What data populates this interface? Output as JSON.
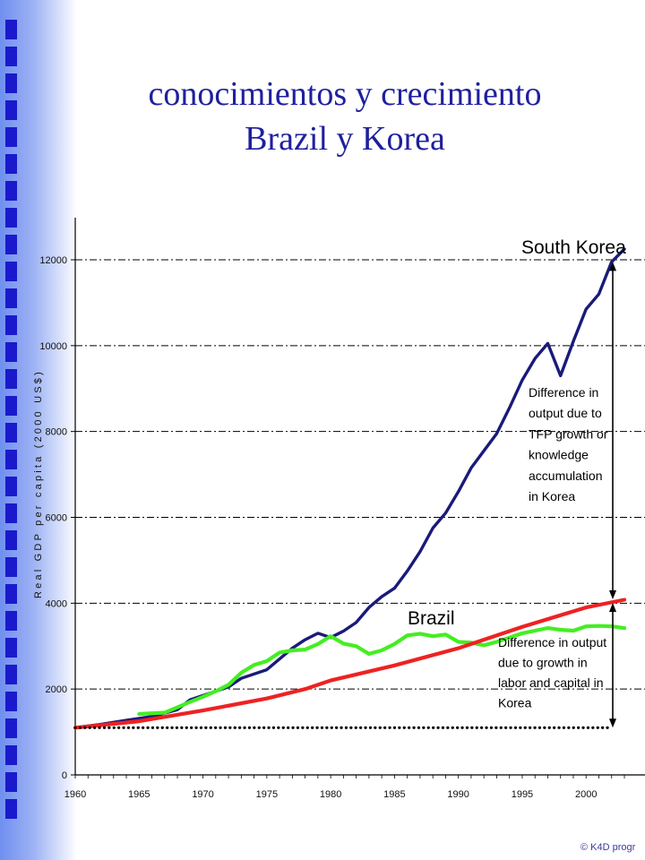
{
  "slide": {
    "title_line1": "conocimientos  y crecimiento",
    "title_line2": "Brazil y Korea",
    "footer": "© K4D progr"
  },
  "colors": {
    "south_korea": "#1a1a7a",
    "brazil_actual": "#44ee22",
    "brazil_inputs": "#ee2222",
    "title": "#1f1f9e",
    "sidebar_squares": "#1a1acc"
  },
  "chart_data": {
    "type": "line",
    "title": "",
    "xlabel": "",
    "ylabel": "Real GDP per capita (2000 US$)",
    "xlim": [
      1960,
      2003
    ],
    "ylim": [
      0,
      13000
    ],
    "x_ticks": [
      1960,
      1965,
      1970,
      1975,
      1980,
      1985,
      1990,
      1995,
      2000
    ],
    "y_ticks": [
      0,
      2000,
      4000,
      6000,
      8000,
      10000,
      12000
    ],
    "grid": "horizontal dash-dot",
    "series": [
      {
        "name": "South Korea",
        "color": "#1a1a7a",
        "points": [
          [
            1960,
            1100
          ],
          [
            1962,
            1180
          ],
          [
            1964,
            1270
          ],
          [
            1966,
            1360
          ],
          [
            1968,
            1520
          ],
          [
            1969,
            1750
          ],
          [
            1970,
            1850
          ],
          [
            1972,
            2050
          ],
          [
            1973,
            2250
          ],
          [
            1975,
            2450
          ],
          [
            1976,
            2700
          ],
          [
            1977,
            2950
          ],
          [
            1978,
            3150
          ],
          [
            1979,
            3300
          ],
          [
            1980,
            3200
          ],
          [
            1981,
            3350
          ],
          [
            1982,
            3550
          ],
          [
            1983,
            3900
          ],
          [
            1984,
            4150
          ],
          [
            1985,
            4350
          ],
          [
            1986,
            4750
          ],
          [
            1987,
            5200
          ],
          [
            1988,
            5750
          ],
          [
            1989,
            6100
          ],
          [
            1990,
            6600
          ],
          [
            1991,
            7150
          ],
          [
            1992,
            7550
          ],
          [
            1993,
            7950
          ],
          [
            1994,
            8550
          ],
          [
            1995,
            9200
          ],
          [
            1996,
            9700
          ],
          [
            1997,
            10050
          ],
          [
            1998,
            9300
          ],
          [
            1999,
            10100
          ],
          [
            2000,
            10850
          ],
          [
            2001,
            11200
          ],
          [
            2002,
            11950
          ],
          [
            2003,
            12250
          ]
        ]
      },
      {
        "name": "Brazil",
        "color": "#44ee22",
        "points": [
          [
            1965,
            1420
          ],
          [
            1967,
            1450
          ],
          [
            1969,
            1700
          ],
          [
            1970,
            1820
          ],
          [
            1971,
            1950
          ],
          [
            1972,
            2100
          ],
          [
            1973,
            2380
          ],
          [
            1974,
            2560
          ],
          [
            1975,
            2650
          ],
          [
            1976,
            2850
          ],
          [
            1977,
            2900
          ],
          [
            1978,
            2920
          ],
          [
            1979,
            3050
          ],
          [
            1980,
            3230
          ],
          [
            1981,
            3060
          ],
          [
            1982,
            3000
          ],
          [
            1983,
            2820
          ],
          [
            1984,
            2900
          ],
          [
            1985,
            3050
          ],
          [
            1986,
            3250
          ],
          [
            1987,
            3290
          ],
          [
            1988,
            3230
          ],
          [
            1989,
            3270
          ],
          [
            1990,
            3100
          ],
          [
            1991,
            3080
          ],
          [
            1992,
            3020
          ],
          [
            1993,
            3100
          ],
          [
            1994,
            3200
          ],
          [
            1995,
            3300
          ],
          [
            1996,
            3360
          ],
          [
            1997,
            3420
          ],
          [
            1998,
            3380
          ],
          [
            1999,
            3360
          ],
          [
            2000,
            3460
          ],
          [
            2001,
            3470
          ],
          [
            2002,
            3460
          ],
          [
            2003,
            3420
          ]
        ]
      },
      {
        "name": "",
        "color": "#ee2222",
        "points": [
          [
            1960,
            1100
          ],
          [
            1965,
            1250
          ],
          [
            1970,
            1500
          ],
          [
            1975,
            1780
          ],
          [
            1978,
            2000
          ],
          [
            1980,
            2200
          ],
          [
            1985,
            2550
          ],
          [
            1990,
            2950
          ],
          [
            1995,
            3450
          ],
          [
            2000,
            3900
          ],
          [
            2003,
            4080
          ]
        ]
      },
      {
        "name": "",
        "color": "#000000",
        "style": "dotted",
        "points": [
          [
            1960,
            1100
          ],
          [
            2002,
            1100
          ]
        ]
      }
    ],
    "annotations": {
      "south_korea_label": "South Korea",
      "brazil_label": "Brazil",
      "tfp_note": [
        "Difference in",
        "output due to",
        "TFP growth or",
        "knowledge",
        "accumulation",
        "in Korea"
      ],
      "inputs_note": [
        "Difference in output",
        "due to growth in",
        "labor and capital in",
        "Korea"
      ]
    }
  }
}
